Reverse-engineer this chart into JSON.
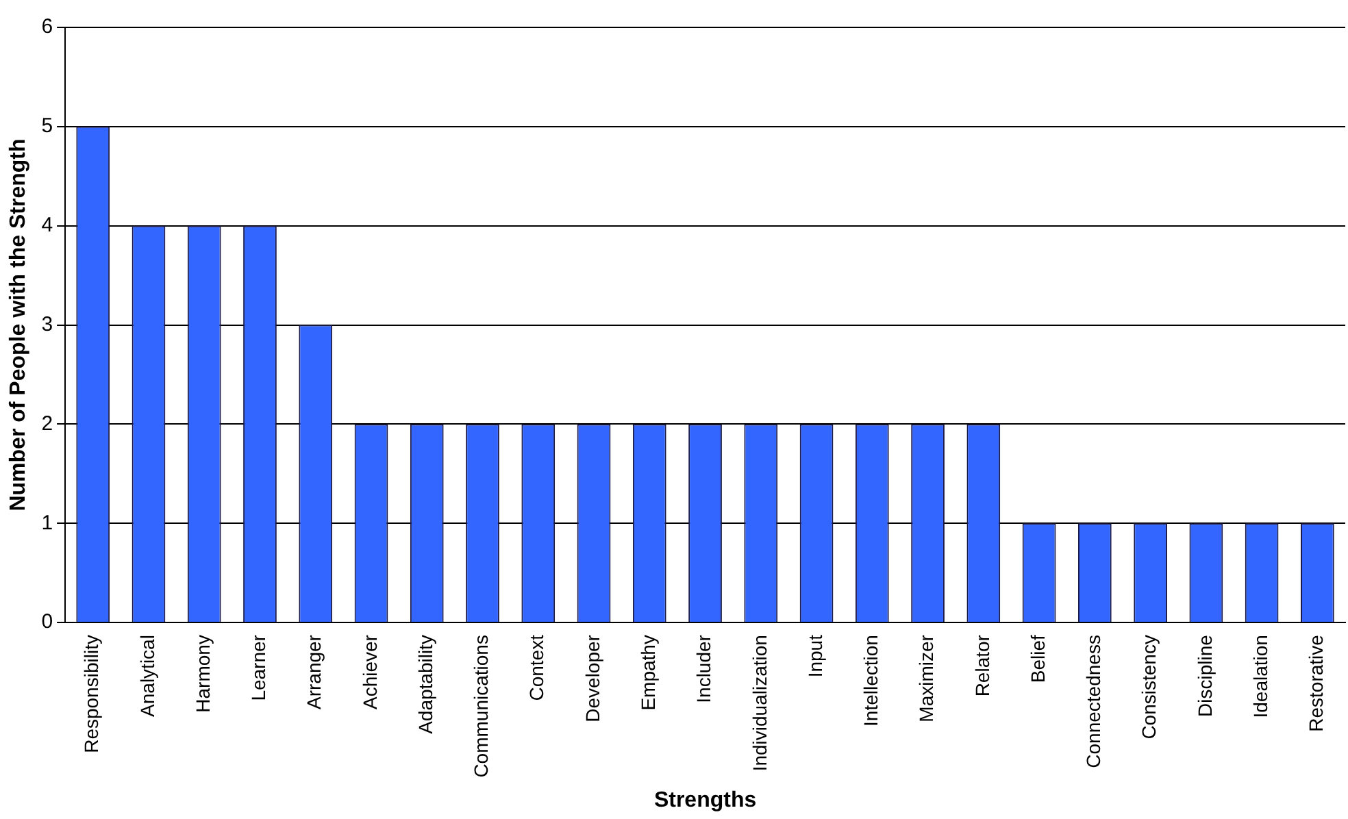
{
  "chart_data": {
    "type": "bar",
    "xlabel": "Strengths",
    "ylabel": "Number of People with the Strength",
    "categories": [
      "Responsibility",
      "Analytical",
      "Harmony",
      "Learner",
      "Arranger",
      "Achiever",
      "Adaptability",
      "Communications",
      "Context",
      "Developer",
      "Empathy",
      "Includer",
      "Individualization",
      "Input",
      "Intellection",
      "Maximizer",
      "Relator",
      "Belief",
      "Connectedness",
      "Consistency",
      "Discipline",
      "Idealation",
      "Restorative"
    ],
    "values": [
      5,
      4,
      4,
      4,
      3,
      2,
      2,
      2,
      2,
      2,
      2,
      2,
      2,
      2,
      2,
      2,
      2,
      1,
      1,
      1,
      1,
      1,
      1
    ],
    "color": "#3366ff",
    "ylim": [
      0,
      6
    ],
    "yticks": [
      0,
      1,
      2,
      3,
      4,
      5,
      6
    ],
    "grid": "y"
  }
}
